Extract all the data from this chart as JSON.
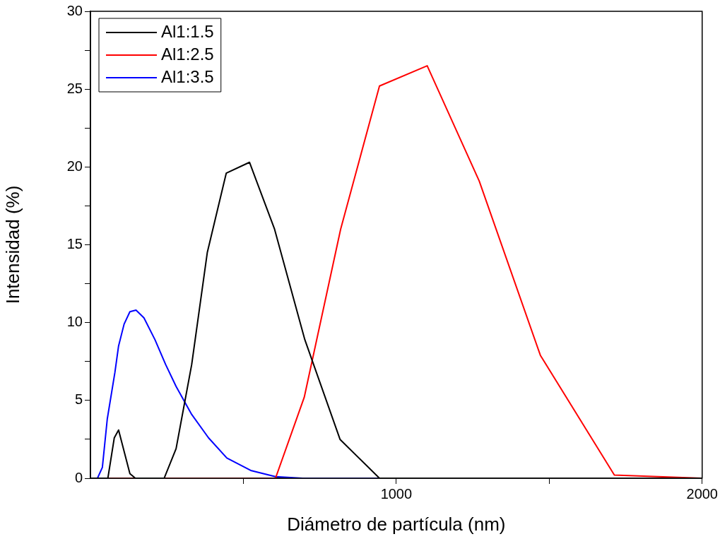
{
  "chart_data": {
    "type": "line",
    "xlabel": "Diámetro de partícula (nm)",
    "ylabel": "Intensidad (%)",
    "xlim": [
      0,
      2000
    ],
    "xticks": [
      {
        "value": 500,
        "label": null
      },
      1000,
      {
        "value": 1500,
        "label": null
      },
      2000
    ],
    "ylim": [
      0,
      30
    ],
    "yticks": [
      0,
      {
        "value": 2.5,
        "label": null
      },
      5,
      {
        "value": 7.5,
        "label": null
      },
      10,
      {
        "value": 12.5,
        "label": null
      },
      15,
      {
        "value": 17.5,
        "label": null
      },
      20,
      {
        "value": 22.5,
        "label": null
      },
      25,
      {
        "value": 27.5,
        "label": null
      },
      30
    ],
    "grid": false,
    "legend": "top left",
    "marker": "none",
    "line_style": "solid",
    "series": [
      {
        "name": "Al1:1.5",
        "color": "#000000",
        "x": [
          0,
          57,
          78,
          92,
          129,
          147,
          241,
          280,
          331,
          382,
          444,
          520,
          602,
          701,
          816,
          945,
          2000
        ],
        "values": [
          0,
          0,
          2.6,
          3.1,
          0.3,
          0,
          0,
          1.9,
          7.3,
          14.5,
          19.6,
          20.3,
          16.0,
          8.9,
          2.5,
          0,
          0
        ]
      },
      {
        "name": "Al1:2.5",
        "color": "#ff0000",
        "x": [
          0,
          605,
          699,
          818,
          945,
          1101,
          1271,
          1471,
          1713,
          2000
        ],
        "values": [
          0,
          0,
          5.2,
          16.0,
          25.2,
          26.5,
          19.1,
          7.9,
          0.2,
          0
        ]
      },
      {
        "name": "Al1:3.5",
        "color": "#0000ff",
        "x": [
          0,
          23,
          39,
          55,
          80,
          92,
          110,
          129,
          149,
          175,
          211,
          246,
          280,
          331,
          386,
          446,
          524,
          605,
          694,
          2000
        ],
        "values": [
          0,
          0,
          0.7,
          3.8,
          6.8,
          8.5,
          9.9,
          10.7,
          10.8,
          10.3,
          8.9,
          7.3,
          5.9,
          4.1,
          2.6,
          1.3,
          0.5,
          0.1,
          0,
          0
        ]
      }
    ]
  }
}
